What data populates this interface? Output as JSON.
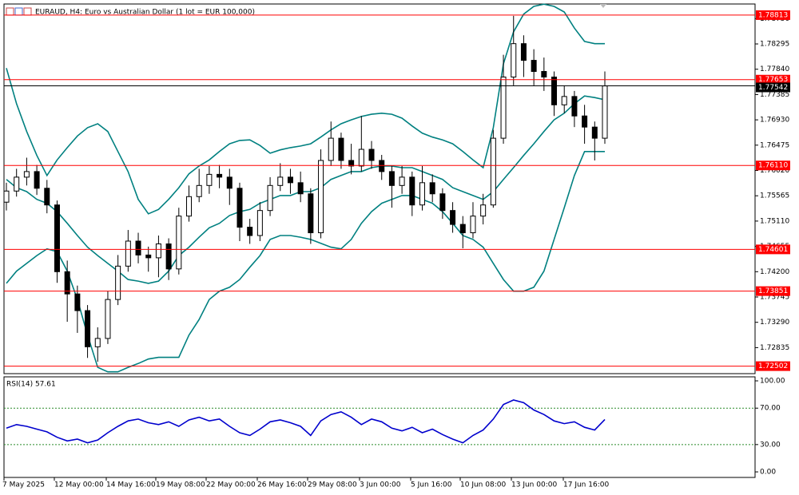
{
  "chart_data": [
    {
      "type": "candlestick",
      "title": "EURAUD, H4:  Euro vs Australian Dollar (1 lot = EUR 100,000)",
      "x_labels": [
        "7 May 2025",
        "12 May 00:00",
        "14 May 16:00",
        "19 May 08:00",
        "22 May 00:00",
        "26 May 16:00",
        "29 May 08:00",
        "3 Jun 00:00",
        "5 Jun 16:00",
        "10 Jun 08:00",
        "13 Jun 00:00",
        "17 Jun 16:00"
      ],
      "open": [
        1.7545,
        1.7565,
        1.759,
        1.76,
        1.757,
        1.754,
        1.742,
        1.738,
        1.735,
        1.7285,
        1.73,
        1.737,
        1.743,
        1.7475,
        1.745,
        1.7445,
        1.747,
        1.7425,
        1.752,
        1.7555,
        1.7575,
        1.7595,
        1.759,
        1.757,
        1.75,
        1.7485,
        1.753,
        1.7575,
        1.759,
        1.758,
        1.756,
        1.749,
        1.762,
        1.766,
        1.762,
        1.761,
        1.764,
        1.762,
        1.76,
        1.7575,
        1.759,
        1.754,
        1.758,
        1.756,
        1.753,
        1.7505,
        1.749,
        1.752,
        1.754,
        1.766,
        1.777,
        1.783,
        1.78,
        1.778,
        1.777,
        1.772,
        1.7735,
        1.77,
        1.768,
        1.766
      ],
      "high": [
        1.758,
        1.7605,
        1.7625,
        1.7612,
        1.7585,
        1.7548,
        1.744,
        1.7395,
        1.736,
        1.732,
        1.7385,
        1.745,
        1.7495,
        1.749,
        1.7465,
        1.7485,
        1.748,
        1.7535,
        1.7575,
        1.7605,
        1.761,
        1.7612,
        1.7605,
        1.758,
        1.7515,
        1.7545,
        1.759,
        1.7615,
        1.7605,
        1.76,
        1.757,
        1.764,
        1.769,
        1.767,
        1.765,
        1.77,
        1.7655,
        1.763,
        1.761,
        1.761,
        1.76,
        1.761,
        1.7595,
        1.757,
        1.7545,
        1.752,
        1.7545,
        1.756,
        1.7675,
        1.781,
        1.788,
        1.7845,
        1.782,
        1.7805,
        1.778,
        1.7755,
        1.7745,
        1.772,
        1.769,
        1.778
      ],
      "low": [
        1.753,
        1.7555,
        1.7575,
        1.7558,
        1.7525,
        1.74,
        1.733,
        1.731,
        1.7265,
        1.7258,
        1.729,
        1.736,
        1.742,
        1.7435,
        1.742,
        1.741,
        1.7405,
        1.7415,
        1.751,
        1.7545,
        1.756,
        1.757,
        1.754,
        1.7475,
        1.747,
        1.7475,
        1.752,
        1.7565,
        1.756,
        1.7545,
        1.747,
        1.748,
        1.761,
        1.7605,
        1.7595,
        1.76,
        1.7605,
        1.7585,
        1.7535,
        1.756,
        1.752,
        1.753,
        1.7545,
        1.7515,
        1.749,
        1.7462,
        1.748,
        1.7505,
        1.7535,
        1.765,
        1.7755,
        1.777,
        1.7755,
        1.7745,
        1.77,
        1.7705,
        1.768,
        1.765,
        1.762,
        1.765
      ],
      "close": [
        1.7565,
        1.759,
        1.76,
        1.757,
        1.754,
        1.742,
        1.738,
        1.735,
        1.7285,
        1.73,
        1.737,
        1.743,
        1.7475,
        1.745,
        1.7445,
        1.747,
        1.7425,
        1.752,
        1.7555,
        1.7575,
        1.7595,
        1.759,
        1.757,
        1.75,
        1.7485,
        1.753,
        1.7575,
        1.759,
        1.758,
        1.756,
        1.749,
        1.762,
        1.766,
        1.762,
        1.761,
        1.764,
        1.762,
        1.76,
        1.7575,
        1.759,
        1.754,
        1.758,
        1.756,
        1.753,
        1.7505,
        1.749,
        1.752,
        1.754,
        1.766,
        1.777,
        1.783,
        1.78,
        1.778,
        1.777,
        1.772,
        1.7735,
        1.77,
        1.768,
        1.766,
        1.7754
      ],
      "up_color": "#ffffff",
      "down_color": "#000000",
      "bands": {
        "color": "#008080",
        "upper": [
          1.7786,
          1.7722,
          1.7672,
          1.7629,
          1.7593,
          1.7621,
          1.7643,
          1.7664,
          1.7679,
          1.7686,
          1.7672,
          1.7636,
          1.76,
          1.755,
          1.7524,
          1.7532,
          1.755,
          1.7571,
          1.7596,
          1.761,
          1.7621,
          1.7636,
          1.765,
          1.7656,
          1.7657,
          1.7647,
          1.7633,
          1.7639,
          1.7643,
          1.7646,
          1.765,
          1.7662,
          1.7675,
          1.7686,
          1.7693,
          1.7699,
          1.7703,
          1.7705,
          1.7703,
          1.7696,
          1.7682,
          1.7669,
          1.7662,
          1.7657,
          1.765,
          1.7636,
          1.7621,
          1.7607,
          1.7679,
          1.7794,
          1.7851,
          1.7883,
          1.7897,
          1.7901,
          1.7897,
          1.7887,
          1.7858,
          1.7834,
          1.783,
          1.783
        ],
        "middle": [
          1.7586,
          1.7571,
          1.7564,
          1.755,
          1.7543,
          1.7528,
          1.7507,
          1.7485,
          1.7464,
          1.7449,
          1.7435,
          1.7421,
          1.7406,
          1.7403,
          1.7399,
          1.7403,
          1.7421,
          1.7449,
          1.7464,
          1.7482,
          1.7499,
          1.7507,
          1.7521,
          1.7528,
          1.7532,
          1.7543,
          1.755,
          1.7557,
          1.7557,
          1.7564,
          1.7564,
          1.7571,
          1.7586,
          1.7593,
          1.76,
          1.76,
          1.7607,
          1.761,
          1.761,
          1.7607,
          1.7607,
          1.76,
          1.7593,
          1.7586,
          1.7571,
          1.7564,
          1.7557,
          1.755,
          1.7564,
          1.7586,
          1.7607,
          1.7629,
          1.765,
          1.7672,
          1.7693,
          1.7705,
          1.7722,
          1.7736,
          1.7733,
          1.7729
        ],
        "lower": [
          1.7399,
          1.7421,
          1.7435,
          1.7449,
          1.7461,
          1.7456,
          1.7421,
          1.737,
          1.7306,
          1.7248,
          1.724,
          1.724,
          1.7248,
          1.7255,
          1.7263,
          1.7266,
          1.7266,
          1.7266,
          1.7306,
          1.7334,
          1.737,
          1.7385,
          1.7392,
          1.7406,
          1.7428,
          1.7449,
          1.7478,
          1.7485,
          1.7485,
          1.7482,
          1.7478,
          1.7471,
          1.7464,
          1.7461,
          1.7478,
          1.7507,
          1.7528,
          1.7543,
          1.755,
          1.7557,
          1.7557,
          1.755,
          1.7543,
          1.7528,
          1.7507,
          1.7485,
          1.7478,
          1.7464,
          1.7435,
          1.7406,
          1.7385,
          1.7385,
          1.7392,
          1.7421,
          1.7478,
          1.7535,
          1.7593,
          1.7636,
          1.7636,
          1.7636
        ]
      },
      "ylim": [
        1.72367,
        1.79013
      ],
      "yticks": [
        {
          "value": 1.7875,
          "label": "1.78750"
        },
        {
          "value": 1.78295,
          "label": "1.78295"
        },
        {
          "value": 1.7784,
          "label": "1.77840"
        },
        {
          "value": 1.77385,
          "label": "1.77385"
        },
        {
          "value": 1.7693,
          "label": "1.76930"
        },
        {
          "value": 1.76475,
          "label": "1.76475"
        },
        {
          "value": 1.7602,
          "label": "1.76020"
        },
        {
          "value": 1.75565,
          "label": "1.75565"
        },
        {
          "value": 1.7511,
          "label": "1.75110"
        },
        {
          "value": 1.74655,
          "label": "1.74655"
        },
        {
          "value": 1.742,
          "label": "1.74200"
        },
        {
          "value": 1.73745,
          "label": "1.73745"
        },
        {
          "value": 1.7329,
          "label": "1.73290"
        },
        {
          "value": 1.72835,
          "label": "1.72835"
        }
      ],
      "levels": [
        {
          "value": 1.78813,
          "label": "1.78813"
        },
        {
          "value": 1.77653,
          "label": "1.77653"
        },
        {
          "value": 1.7611,
          "label": "1.76110"
        },
        {
          "value": 1.74601,
          "label": "1.74601"
        },
        {
          "value": 1.73851,
          "label": "1.73851"
        },
        {
          "value": 1.72502,
          "label": "1.72502"
        }
      ],
      "level_color": "#ff0000",
      "last_price": {
        "value": 1.77542,
        "label": "1.77542"
      }
    },
    {
      "type": "line",
      "title": "RSI(14) 57.61",
      "color": "#0000cd",
      "values": [
        48,
        52,
        50,
        47,
        44,
        38,
        34,
        36,
        32,
        35,
        43,
        50,
        56,
        58,
        54,
        52,
        55,
        50,
        57,
        60,
        56,
        58,
        50,
        43,
        40,
        47,
        55,
        57,
        54,
        50,
        40,
        56,
        63,
        66,
        60,
        52,
        58,
        55,
        48,
        45,
        49,
        43,
        47,
        41,
        36,
        32,
        40,
        46,
        58,
        74,
        79,
        76,
        68,
        63,
        56,
        53,
        55,
        49,
        46,
        57.61
      ],
      "ylim": [
        -6.1,
        104.4
      ],
      "yticks": [
        {
          "value": 100,
          "label": "100.00"
        },
        {
          "value": 70,
          "label": "70.00"
        },
        {
          "value": 30,
          "label": "30.00"
        },
        {
          "value": 0,
          "label": "0.00"
        }
      ],
      "levels": [
        70,
        30
      ]
    }
  ]
}
